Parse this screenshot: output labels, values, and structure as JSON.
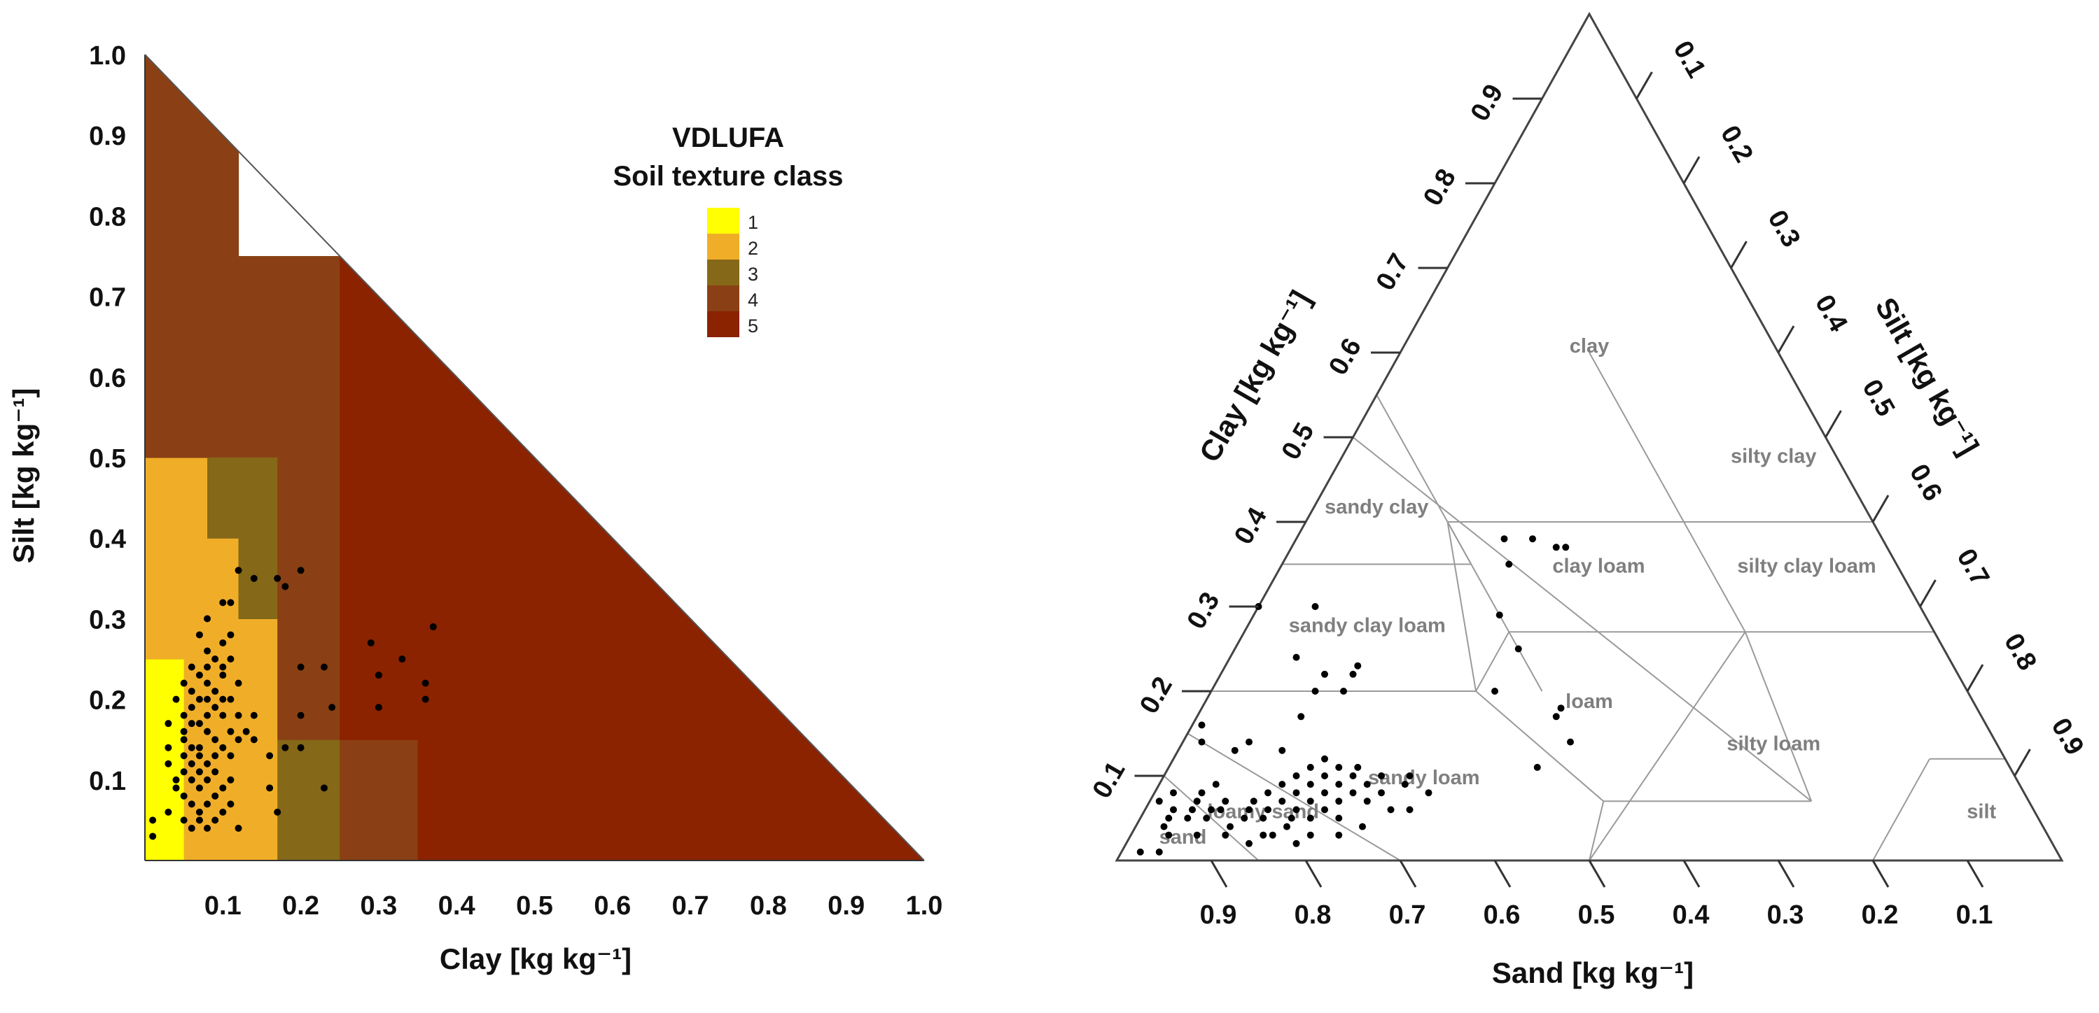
{
  "chart_data": [
    {
      "type": "heatmap",
      "panel": "left",
      "xlabel": "Clay [kg kg⁻¹]",
      "ylabel": "Silt [kg kg⁻¹]",
      "xlim": [
        0,
        1.0
      ],
      "ylim": [
        0,
        1.0
      ],
      "x_ticks": [
        "0.1",
        "0.2",
        "0.3",
        "0.4",
        "0.5",
        "0.6",
        "0.7",
        "0.8",
        "0.9",
        "1.0"
      ],
      "y_ticks": [
        "0.1",
        "0.2",
        "0.3",
        "0.4",
        "0.5",
        "0.6",
        "0.7",
        "0.8",
        "0.9",
        "1.0"
      ],
      "legend": {
        "title_line1": "VDLUFA",
        "title_line2": "Soil texture class",
        "placement": "top-right",
        "items": [
          {
            "label": "1",
            "color": "#ffff00"
          },
          {
            "label": "2",
            "color": "#f0ae28"
          },
          {
            "label": "3",
            "color": "#856818"
          },
          {
            "label": "4",
            "color": "#8a4014"
          },
          {
            "label": "5",
            "color": "#8b2200"
          }
        ]
      },
      "class_cells": [
        {
          "cls": 1,
          "clay": [
            0,
            0.05
          ],
          "silt": [
            0,
            0.25
          ]
        },
        {
          "cls": 2,
          "clay": [
            0.05,
            0.17
          ],
          "silt": [
            0,
            0.4
          ]
        },
        {
          "cls": 2,
          "clay": [
            0,
            0.05
          ],
          "silt": [
            0.25,
            0.5
          ]
        },
        {
          "cls": 2,
          "clay": [
            0.05,
            0.08
          ],
          "silt": [
            0.4,
            0.5
          ]
        },
        {
          "cls": 4,
          "clay": [
            0,
            0.08
          ],
          "silt": [
            0.5,
            1.0
          ]
        },
        {
          "cls": 4,
          "clay": [
            0.08,
            0.12
          ],
          "silt": [
            0.5,
            0.92
          ]
        },
        {
          "cls": 4,
          "clay": [
            0.12,
            0.25
          ],
          "silt": [
            0.5,
            0.75
          ]
        },
        {
          "cls": 4,
          "clay": [
            0.25,
            0.3
          ],
          "silt": [
            0.5,
            0.65
          ]
        },
        {
          "cls": 3,
          "clay": [
            0.08,
            0.12
          ],
          "silt": [
            0.4,
            0.5
          ]
        },
        {
          "cls": 3,
          "clay": [
            0.12,
            0.17
          ],
          "silt": [
            0.3,
            0.5
          ]
        },
        {
          "cls": 3,
          "clay": [
            0.17,
            0.25
          ],
          "silt": [
            0,
            0.15
          ]
        },
        {
          "cls": 4,
          "clay": [
            0.17,
            0.25
          ],
          "silt": [
            0.15,
            0.5
          ]
        },
        {
          "cls": 4,
          "clay": [
            0.25,
            0.35
          ],
          "silt": [
            0,
            0.15
          ]
        },
        {
          "cls": 5,
          "clay": [
            0.25,
            1.0
          ],
          "silt": [
            0.15,
            0.75
          ]
        },
        {
          "cls": 5,
          "clay": [
            0.35,
            1.0
          ],
          "silt": [
            0,
            0.15
          ]
        }
      ],
      "points": [
        [
          0.01,
          0.05
        ],
        [
          0.01,
          0.03
        ],
        [
          0.03,
          0.14
        ],
        [
          0.03,
          0.17
        ],
        [
          0.03,
          0.12
        ],
        [
          0.03,
          0.06
        ],
        [
          0.04,
          0.09
        ],
        [
          0.04,
          0.2
        ],
        [
          0.04,
          0.1
        ],
        [
          0.05,
          0.22
        ],
        [
          0.05,
          0.18
        ],
        [
          0.05,
          0.15
        ],
        [
          0.05,
          0.11
        ],
        [
          0.05,
          0.08
        ],
        [
          0.05,
          0.05
        ],
        [
          0.05,
          0.16
        ],
        [
          0.06,
          0.24
        ],
        [
          0.06,
          0.21
        ],
        [
          0.06,
          0.19
        ],
        [
          0.06,
          0.14
        ],
        [
          0.06,
          0.12
        ],
        [
          0.06,
          0.1
        ],
        [
          0.06,
          0.07
        ],
        [
          0.06,
          0.04
        ],
        [
          0.07,
          0.2
        ],
        [
          0.07,
          0.17
        ],
        [
          0.07,
          0.13
        ],
        [
          0.07,
          0.09
        ],
        [
          0.07,
          0.06
        ],
        [
          0.07,
          0.05
        ],
        [
          0.07,
          0.23
        ],
        [
          0.07,
          0.28
        ],
        [
          0.08,
          0.3
        ],
        [
          0.08,
          0.26
        ],
        [
          0.08,
          0.24
        ],
        [
          0.08,
          0.22
        ],
        [
          0.08,
          0.18
        ],
        [
          0.08,
          0.16
        ],
        [
          0.08,
          0.12
        ],
        [
          0.08,
          0.1
        ],
        [
          0.08,
          0.07
        ],
        [
          0.08,
          0.04
        ],
        [
          0.09,
          0.21
        ],
        [
          0.09,
          0.19
        ],
        [
          0.09,
          0.15
        ],
        [
          0.09,
          0.11
        ],
        [
          0.09,
          0.08
        ],
        [
          0.09,
          0.05
        ],
        [
          0.09,
          0.25
        ],
        [
          0.1,
          0.32
        ],
        [
          0.1,
          0.27
        ],
        [
          0.1,
          0.23
        ],
        [
          0.1,
          0.18
        ],
        [
          0.1,
          0.14
        ],
        [
          0.1,
          0.09
        ],
        [
          0.1,
          0.06
        ],
        [
          0.11,
          0.32
        ],
        [
          0.11,
          0.28
        ],
        [
          0.11,
          0.25
        ],
        [
          0.11,
          0.2
        ],
        [
          0.11,
          0.16
        ],
        [
          0.11,
          0.1
        ],
        [
          0.11,
          0.07
        ],
        [
          0.12,
          0.36
        ],
        [
          0.12,
          0.22
        ],
        [
          0.12,
          0.15
        ],
        [
          0.12,
          0.04
        ],
        [
          0.13,
          0.16
        ],
        [
          0.14,
          0.15
        ],
        [
          0.14,
          0.18
        ],
        [
          0.07,
          0.14
        ],
        [
          0.09,
          0.13
        ],
        [
          0.06,
          0.17
        ],
        [
          0.1,
          0.2
        ],
        [
          0.05,
          0.13
        ],
        [
          0.11,
          0.13
        ],
        [
          0.08,
          0.2
        ],
        [
          0.12,
          0.18
        ],
        [
          0.1,
          0.24
        ],
        [
          0.07,
          0.11
        ],
        [
          0.14,
          0.35
        ],
        [
          0.17,
          0.35
        ],
        [
          0.18,
          0.34
        ],
        [
          0.2,
          0.36
        ],
        [
          0.16,
          0.13
        ],
        [
          0.18,
          0.14
        ],
        [
          0.16,
          0.09
        ],
        [
          0.17,
          0.06
        ],
        [
          0.2,
          0.24
        ],
        [
          0.2,
          0.18
        ],
        [
          0.2,
          0.14
        ],
        [
          0.23,
          0.24
        ],
        [
          0.24,
          0.19
        ],
        [
          0.23,
          0.09
        ],
        [
          0.29,
          0.27
        ],
        [
          0.3,
          0.23
        ],
        [
          0.3,
          0.19
        ],
        [
          0.33,
          0.25
        ],
        [
          0.36,
          0.22
        ],
        [
          0.36,
          0.2
        ],
        [
          0.37,
          0.29
        ]
      ]
    },
    {
      "type": "scatter",
      "subtype": "ternary",
      "panel": "right",
      "bottom_axis_label": "Sand [kg kg⁻¹]",
      "left_axis_label": "Clay [kg kg⁻¹]",
      "right_axis_label": "Silt [kg kg⁻¹]",
      "sand_ticks": [
        "0.9",
        "0.8",
        "0.7",
        "0.6",
        "0.5",
        "0.4",
        "0.3",
        "0.2",
        "0.1"
      ],
      "clay_ticks": [
        "0.1",
        "0.2",
        "0.3",
        "0.4",
        "0.5",
        "0.6",
        "0.7",
        "0.8",
        "0.9"
      ],
      "silt_ticks": [
        "0.1",
        "0.2",
        "0.3",
        "0.4",
        "0.5",
        "0.6",
        "0.7",
        "0.8",
        "0.9"
      ],
      "regions": [
        {
          "name": "clay",
          "label_at": {
            "sand": 0.2,
            "clay": 0.6
          }
        },
        {
          "name": "sandy clay",
          "label_at": {
            "sand": 0.52,
            "clay": 0.41
          }
        },
        {
          "name": "silty clay",
          "label_at": {
            "sand": 0.07,
            "clay": 0.47
          }
        },
        {
          "name": "clay loam",
          "label_at": {
            "sand": 0.32,
            "clay": 0.34
          }
        },
        {
          "name": "silty clay loam",
          "label_at": {
            "sand": 0.1,
            "clay": 0.34
          }
        },
        {
          "name": "sandy clay loam",
          "label_at": {
            "sand": 0.6,
            "clay": 0.27
          }
        },
        {
          "name": "loam",
          "label_at": {
            "sand": 0.41,
            "clay": 0.18
          }
        },
        {
          "name": "silty loam",
          "label_at": {
            "sand": 0.24,
            "clay": 0.13
          }
        },
        {
          "name": "sandy loam",
          "label_at": {
            "sand": 0.63,
            "clay": 0.09
          }
        },
        {
          "name": "loamy sand",
          "label_at": {
            "sand": 0.82,
            "clay": 0.05
          }
        },
        {
          "name": "sand",
          "label_at": {
            "sand": 0.92,
            "clay": 0.02
          }
        },
        {
          "name": "silt",
          "label_at": {
            "sand": 0.06,
            "clay": 0.05
          }
        }
      ],
      "boundaries": [
        [
          [
            0.45,
            0.55
          ],
          [
            0.65,
            0.35
          ]
        ],
        [
          [
            0.65,
            0.35
          ],
          [
            0.45,
            0.35
          ]
        ],
        [
          [
            0.65,
            0.35
          ],
          [
            0.45,
            0.55
          ]
        ],
        [
          [
            0.45,
            0.35
          ],
          [
            0.45,
            0.55
          ]
        ],
        [
          [
            0.2,
            0.4
          ],
          [
            0.2,
            0.6
          ]
        ],
        [
          [
            0,
            0.4
          ],
          [
            0.2,
            0.4
          ]
        ],
        [
          [
            0.2,
            0.4
          ],
          [
            0.2,
            0.27
          ]
        ],
        [
          [
            0.2,
            0.4
          ],
          [
            0.45,
            0.4
          ]
        ],
        [
          [
            0.45,
            0.4
          ],
          [
            0.45,
            0.27
          ]
        ],
        [
          [
            0.45,
            0.4
          ],
          [
            0.52,
            0.2
          ]
        ],
        [
          [
            0,
            0.27
          ],
          [
            0.45,
            0.27
          ]
        ],
        [
          [
            0.45,
            0.27
          ],
          [
            0.45,
            0.2
          ]
        ],
        [
          [
            0.45,
            0.27
          ],
          [
            0.52,
            0.2
          ]
        ],
        [
          [
            0.8,
            0.2
          ],
          [
            0.52,
            0.2
          ]
        ],
        [
          [
            0.45,
            0.07
          ],
          [
            0.52,
            0.2
          ]
        ],
        [
          [
            0.45,
            0.07
          ],
          [
            0.5,
            0
          ]
        ],
        [
          [
            0.45,
            0.07
          ],
          [
            0.23,
            0.07
          ]
        ],
        [
          [
            0.2,
            0.27
          ],
          [
            0.23,
            0.07
          ]
        ],
        [
          [
            0.23,
            0.07
          ],
          [
            0.5,
            0.5
          ]
        ],
        [
          [
            0.85,
            0.15
          ],
          [
            0.7,
            0
          ]
        ],
        [
          [
            0.9,
            0.1
          ],
          [
            0.85,
            0
          ]
        ],
        [
          [
            0.2,
            0.27
          ],
          [
            0.5,
            0
          ]
        ],
        [
          [
            0.2,
            0
          ],
          [
            0.08,
            0.12
          ]
        ],
        [
          [
            0,
            0.12
          ],
          [
            0.08,
            0.12
          ]
        ]
      ],
      "points": [
        [
          0.97,
          0.01
        ],
        [
          0.95,
          0.01
        ],
        [
          0.93,
          0.03
        ],
        [
          0.92,
          0.05
        ],
        [
          0.91,
          0.06
        ],
        [
          0.92,
          0.07
        ],
        [
          0.9,
          0.05
        ],
        [
          0.89,
          0.06
        ],
        [
          0.9,
          0.08
        ],
        [
          0.88,
          0.07
        ],
        [
          0.88,
          0.05
        ],
        [
          0.87,
          0.06
        ],
        [
          0.86,
          0.04
        ],
        [
          0.87,
          0.08
        ],
        [
          0.86,
          0.06
        ],
        [
          0.85,
          0.07
        ],
        [
          0.84,
          0.05
        ],
        [
          0.85,
          0.09
        ],
        [
          0.83,
          0.06
        ],
        [
          0.83,
          0.03
        ],
        [
          0.82,
          0.07
        ],
        [
          0.82,
          0.05
        ],
        [
          0.81,
          0.06
        ],
        [
          0.8,
          0.08
        ],
        [
          0.8,
          0.04
        ],
        [
          0.79,
          0.07
        ],
        [
          0.79,
          0.05
        ],
        [
          0.78,
          0.09
        ],
        [
          0.78,
          0.06
        ],
        [
          0.77,
          0.08
        ],
        [
          0.77,
          0.05
        ],
        [
          0.76,
          0.1
        ],
        [
          0.76,
          0.07
        ],
        [
          0.75,
          0.06
        ],
        [
          0.75,
          0.09
        ],
        [
          0.74,
          0.08
        ],
        [
          0.74,
          0.11
        ],
        [
          0.73,
          0.07
        ],
        [
          0.73,
          0.1
        ],
        [
          0.72,
          0.09
        ],
        [
          0.72,
          0.12
        ],
        [
          0.71,
          0.08
        ],
        [
          0.71,
          0.11
        ],
        [
          0.7,
          0.1
        ],
        [
          0.7,
          0.07
        ],
        [
          0.69,
          0.09
        ],
        [
          0.69,
          0.11
        ],
        [
          0.68,
          0.08
        ],
        [
          0.67,
          0.1
        ],
        [
          0.66,
          0.06
        ],
        [
          0.65,
          0.09
        ],
        [
          0.64,
          0.1
        ],
        [
          0.63,
          0.08
        ],
        [
          0.84,
          0.14
        ],
        [
          0.83,
          0.16
        ],
        [
          0.81,
          0.13
        ],
        [
          0.79,
          0.14
        ],
        [
          0.76,
          0.13
        ],
        [
          0.72,
          0.17
        ],
        [
          0.69,
          0.2
        ],
        [
          0.66,
          0.2
        ],
        [
          0.67,
          0.22
        ],
        [
          0.64,
          0.22
        ],
        [
          0.7,
          0.3
        ],
        [
          0.64,
          0.3
        ],
        [
          0.69,
          0.24
        ],
        [
          0.63,
          0.23
        ],
        [
          0.5,
          0.2
        ],
        [
          0.45,
          0.17
        ],
        [
          0.44,
          0.18
        ],
        [
          0.45,
          0.14
        ],
        [
          0.5,
          0.11
        ],
        [
          0.45,
          0.25
        ],
        [
          0.45,
          0.29
        ],
        [
          0.4,
          0.38
        ],
        [
          0.41,
          0.35
        ],
        [
          0.37,
          0.38
        ],
        [
          0.35,
          0.37
        ],
        [
          0.34,
          0.37
        ],
        [
          0.85,
          0.02
        ],
        [
          0.8,
          0.02
        ],
        [
          0.75,
          0.03
        ],
        [
          0.72,
          0.04
        ],
        [
          0.87,
          0.03
        ],
        [
          0.82,
          0.03
        ],
        [
          0.78,
          0.03
        ],
        [
          0.68,
          0.06
        ],
        [
          0.74,
          0.05
        ],
        [
          0.9,
          0.03
        ],
        [
          0.93,
          0.04
        ]
      ]
    }
  ]
}
